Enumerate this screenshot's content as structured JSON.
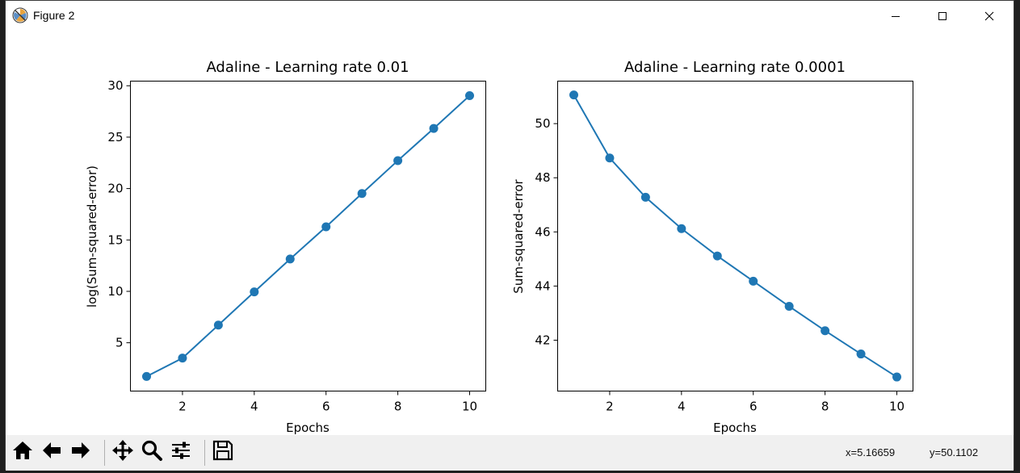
{
  "window": {
    "title": "Figure 2",
    "controls": [
      "minimize",
      "maximize",
      "close"
    ]
  },
  "toolbar": {
    "buttons": [
      {
        "name": "home",
        "icon": "home-icon"
      },
      {
        "name": "back",
        "icon": "back-arrow-icon"
      },
      {
        "name": "forward",
        "icon": "forward-arrow-icon"
      },
      {
        "name": "pan",
        "icon": "move-icon"
      },
      {
        "name": "zoom",
        "icon": "zoom-icon"
      },
      {
        "name": "configure-subplots",
        "icon": "sliders-icon"
      },
      {
        "name": "save",
        "icon": "save-icon"
      }
    ],
    "coord_x": "x=5.16659",
    "coord_y": "y=50.1102"
  },
  "chart_data": [
    {
      "type": "line",
      "title": "Adaline - Learning rate 0.01",
      "xlabel": "Epochs",
      "ylabel": "log(Sum-squared-error)",
      "x": [
        1,
        2,
        3,
        4,
        5,
        6,
        7,
        8,
        9,
        10
      ],
      "series": [
        {
          "values": [
            1.72,
            3.51,
            6.72,
            9.95,
            13.15,
            16.28,
            19.52,
            22.72,
            25.85,
            29.04
          ]
        }
      ],
      "xlim": [
        0.55,
        10.45
      ],
      "ylim": [
        0.3,
        30.45
      ],
      "xticks": [
        2,
        4,
        6,
        8,
        10
      ],
      "yticks": [
        5,
        10,
        15,
        20,
        25,
        30
      ],
      "grid": false,
      "marker": "circle",
      "color": "#1f77b4"
    },
    {
      "type": "line",
      "title": "Adaline - Learning rate 0.0001",
      "xlabel": "Epochs",
      "ylabel": "Sum-squared-error",
      "x": [
        1,
        2,
        3,
        4,
        5,
        6,
        7,
        8,
        9,
        10
      ],
      "series": [
        {
          "values": [
            51.06,
            48.73,
            47.28,
            46.12,
            45.11,
            44.18,
            43.25,
            42.35,
            41.49,
            40.64
          ]
        }
      ],
      "xlim": [
        0.55,
        10.45
      ],
      "ylim": [
        40.12,
        51.57
      ],
      "xticks": [
        2,
        4,
        6,
        8,
        10
      ],
      "yticks": [
        42,
        44,
        46,
        48,
        50
      ],
      "grid": false,
      "marker": "circle",
      "color": "#1f77b4"
    }
  ]
}
